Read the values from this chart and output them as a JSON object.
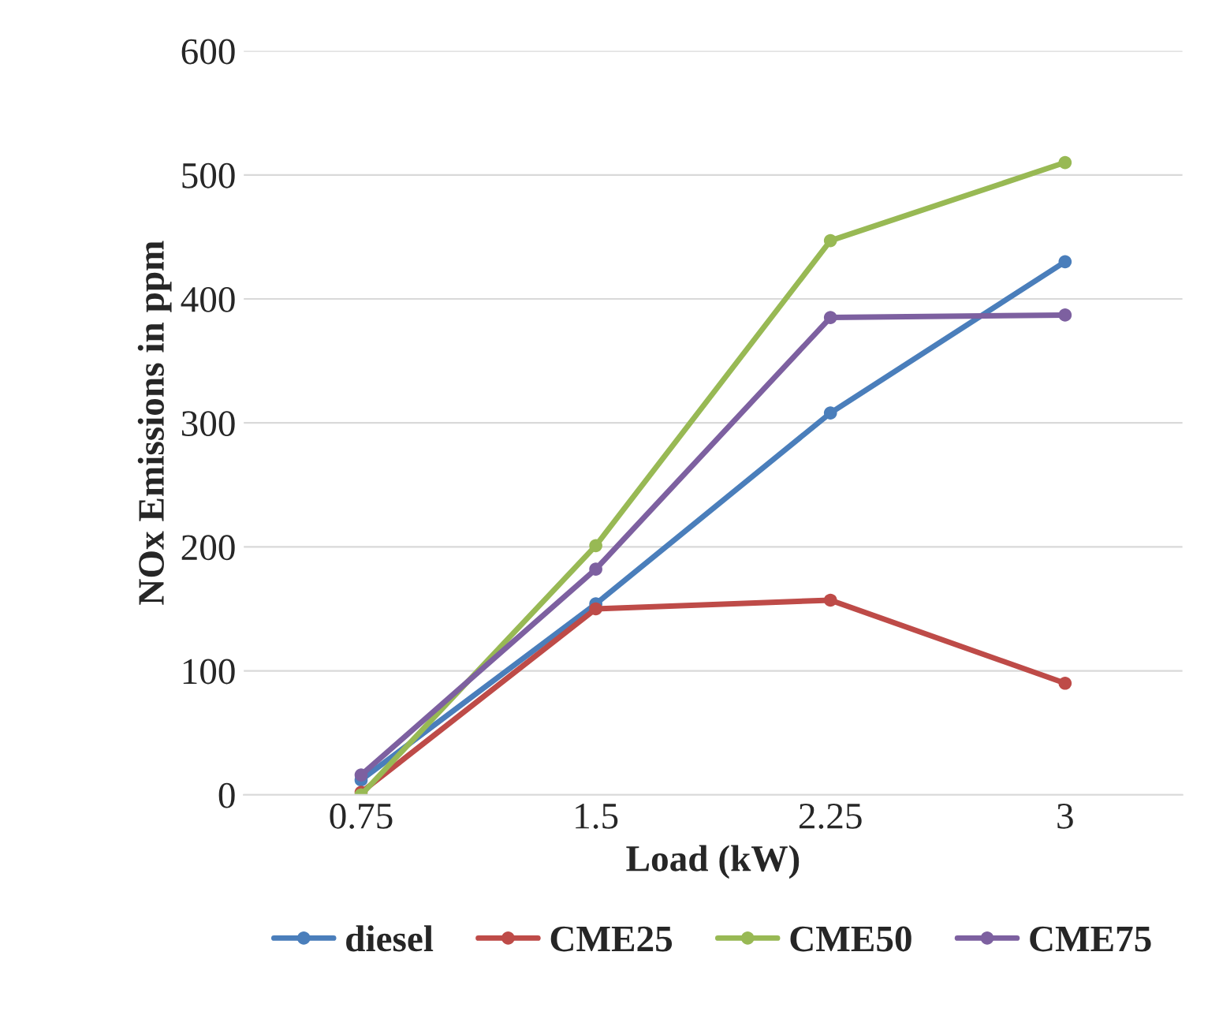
{
  "chart_data": {
    "type": "line",
    "xlabel": "Load (kW)",
    "ylabel": "NOx Emissions in ppm",
    "categories": [
      "0.75",
      "1.5",
      "2.25",
      "3"
    ],
    "series": [
      {
        "name": "diesel",
        "color": "#4a7ebb",
        "values": [
          12,
          154,
          308,
          430
        ]
      },
      {
        "name": "CME25",
        "color": "#be4b48",
        "values": [
          2,
          150,
          157,
          90
        ]
      },
      {
        "name": "CME50",
        "color": "#98b954",
        "values": [
          0,
          201,
          447,
          510
        ]
      },
      {
        "name": "CME75",
        "color": "#7d60a0",
        "values": [
          16,
          182,
          385,
          387
        ]
      }
    ],
    "ylim": [
      0,
      600
    ],
    "yticks": [
      0,
      100,
      200,
      300,
      400,
      500,
      600
    ],
    "grid": "y",
    "legend": "bottom",
    "marker": "circle",
    "line_style": "solid"
  }
}
